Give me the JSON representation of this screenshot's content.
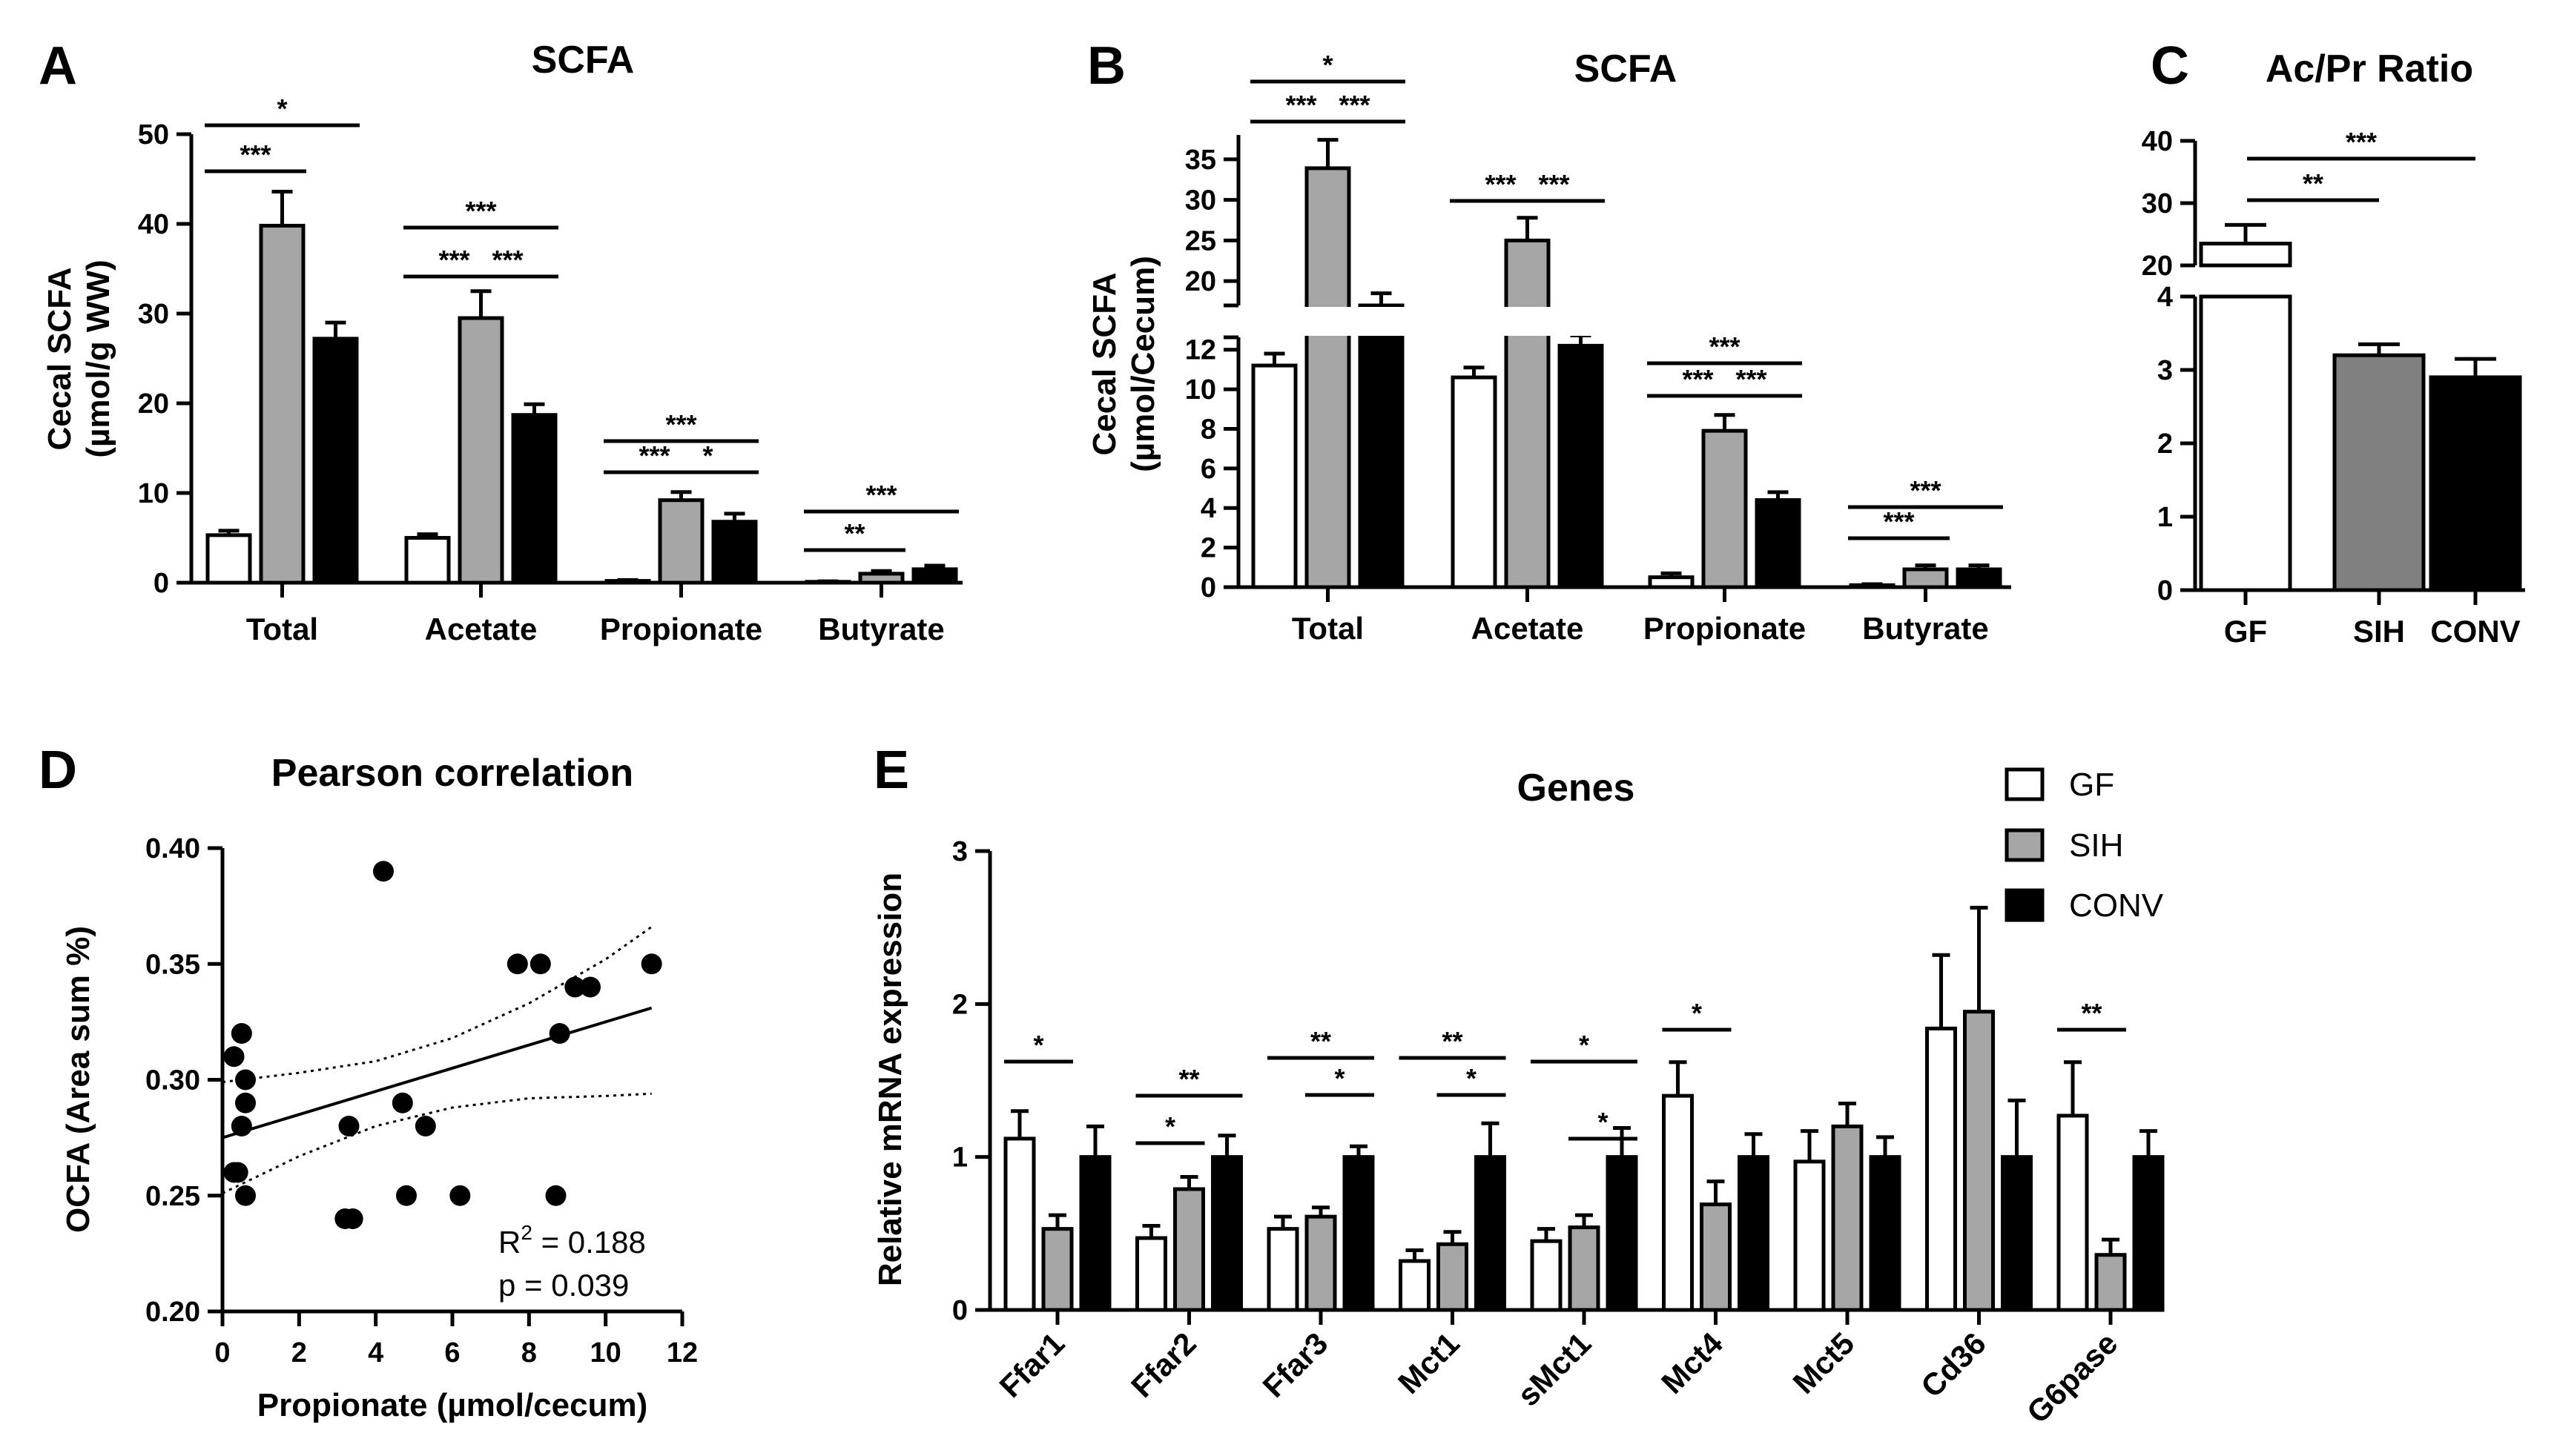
{
  "colors": {
    "GF": "#ffffff",
    "SIH": "#a6a6a6",
    "CONV": "#000000"
  },
  "legend": {
    "items": [
      "GF",
      "SIH",
      "CONV"
    ]
  },
  "chart_data": [
    {
      "panel": "A",
      "type": "bar",
      "title": "SCFA",
      "ylabel": [
        "Cecal SCFA",
        "(µmol/g WW)"
      ],
      "ylim": [
        0,
        50
      ],
      "yticks": [
        "0",
        "10",
        "20",
        "30",
        "40",
        "50"
      ],
      "categories": [
        "Total",
        "Acetate",
        "Propionate",
        "Butyrate"
      ],
      "series": [
        {
          "name": "GF",
          "values": [
            5.3,
            5.0,
            0.2,
            0.1
          ],
          "errors": [
            0.5,
            0.4,
            0.1,
            0.05
          ]
        },
        {
          "name": "SIH",
          "values": [
            39.8,
            29.5,
            9.2,
            1.0
          ],
          "errors": [
            3.8,
            3.0,
            0.9,
            0.3
          ]
        },
        {
          "name": "CONV",
          "values": [
            27.2,
            18.7,
            6.8,
            1.5
          ],
          "errors": [
            1.8,
            1.2,
            0.9,
            0.4
          ]
        }
      ],
      "significance": [
        {
          "cat": 0,
          "from": 0,
          "to": 1,
          "label": "***"
        },
        {
          "cat": 0,
          "from": 0,
          "to": 2,
          "label": "*"
        },
        {
          "cat": 1,
          "from": 0,
          "to": 1,
          "label": "***"
        },
        {
          "cat": 1,
          "from": 1,
          "to": 2,
          "label": "***"
        },
        {
          "cat": 1,
          "from": 0,
          "to": 2,
          "label": "***"
        },
        {
          "cat": 2,
          "from": 0,
          "to": 1,
          "label": "***"
        },
        {
          "cat": 2,
          "from": 1,
          "to": 2,
          "label": "*"
        },
        {
          "cat": 2,
          "from": 0,
          "to": 2,
          "label": "***"
        },
        {
          "cat": 3,
          "from": 0,
          "to": 1,
          "label": "**"
        },
        {
          "cat": 3,
          "from": 0,
          "to": 2,
          "label": "***"
        }
      ]
    },
    {
      "panel": "B",
      "type": "bar",
      "title": "SCFA",
      "ylabel": [
        "Cecal SCFA",
        "(µmol/Cecum)"
      ],
      "yticks_lower": [
        "0",
        "2",
        "4",
        "6",
        "8",
        "10",
        "12"
      ],
      "yticks_upper": [
        "20",
        "25",
        "30",
        "35"
      ],
      "categories": [
        "Total",
        "Acetate",
        "Propionate",
        "Butyrate"
      ],
      "series": [
        {
          "name": "GF",
          "values": [
            11.2,
            10.6,
            0.5,
            0.1
          ],
          "errors": [
            0.6,
            0.5,
            0.2,
            0.05
          ]
        },
        {
          "name": "SIH",
          "values": [
            33.9,
            25.0,
            7.9,
            0.9
          ],
          "errors": [
            3.5,
            2.8,
            0.8,
            0.2
          ]
        },
        {
          "name": "CONV",
          "values": [
            17.0,
            12.2,
            4.4,
            0.9
          ],
          "errors": [
            1.5,
            1.1,
            0.4,
            0.2
          ]
        }
      ],
      "significance": [
        {
          "cat": 0,
          "from": 0,
          "to": 1,
          "label": "***"
        },
        {
          "cat": 0,
          "from": 1,
          "to": 2,
          "label": "***"
        },
        {
          "cat": 0,
          "from": 0,
          "to": 2,
          "label": "*"
        },
        {
          "cat": 1,
          "from": 0,
          "to": 1,
          "label": "***"
        },
        {
          "cat": 1,
          "from": 1,
          "to": 2,
          "label": "***"
        },
        {
          "cat": 2,
          "from": 0,
          "to": 1,
          "label": "***"
        },
        {
          "cat": 2,
          "from": 1,
          "to": 2,
          "label": "***"
        },
        {
          "cat": 2,
          "from": 0,
          "to": 2,
          "label": "***"
        },
        {
          "cat": 3,
          "from": 0,
          "to": 1,
          "label": "***"
        },
        {
          "cat": 3,
          "from": 0,
          "to": 2,
          "label": "***"
        }
      ]
    },
    {
      "panel": "C",
      "type": "bar",
      "title": "Ac/Pr Ratio",
      "yticks_lower": [
        "0",
        "1",
        "2",
        "3",
        "4"
      ],
      "yticks_upper": [
        "20",
        "30",
        "40"
      ],
      "categories": [
        "GF",
        "SIH",
        "CONV"
      ],
      "values": [
        23.5,
        3.2,
        2.9
      ],
      "errors": [
        3.0,
        0.15,
        0.25
      ],
      "significance": [
        {
          "from": 0,
          "to": 1,
          "label": "**"
        },
        {
          "from": 0,
          "to": 2,
          "label": "***"
        }
      ]
    },
    {
      "panel": "D",
      "type": "scatter",
      "title": "Pearson correlation",
      "xlabel": "Propionate (µmol/cecum)",
      "ylabel": "OCFA (Area sum %)",
      "xlim": [
        0,
        12
      ],
      "ylim": [
        0.2,
        0.4
      ],
      "xticks": [
        "0",
        "2",
        "4",
        "6",
        "8",
        "10",
        "12"
      ],
      "yticks": [
        "0.20",
        "0.25",
        "0.30",
        "0.35",
        "0.40"
      ],
      "points": [
        [
          0.3,
          0.31
        ],
        [
          0.3,
          0.26
        ],
        [
          0.4,
          0.26
        ],
        [
          0.5,
          0.32
        ],
        [
          0.5,
          0.28
        ],
        [
          0.6,
          0.3
        ],
        [
          0.6,
          0.29
        ],
        [
          0.6,
          0.25
        ],
        [
          3.2,
          0.24
        ],
        [
          3.3,
          0.28
        ],
        [
          3.4,
          0.24
        ],
        [
          4.2,
          0.39
        ],
        [
          4.7,
          0.29
        ],
        [
          4.8,
          0.25
        ],
        [
          5.3,
          0.28
        ],
        [
          6.2,
          0.25
        ],
        [
          7.7,
          0.35
        ],
        [
          8.3,
          0.35
        ],
        [
          8.7,
          0.25
        ],
        [
          8.8,
          0.32
        ],
        [
          9.2,
          0.34
        ],
        [
          9.6,
          0.34
        ],
        [
          11.2,
          0.35
        ]
      ],
      "fit": {
        "x": [
          0,
          11.2
        ],
        "y": [
          0.275,
          0.331
        ]
      },
      "ci_lower": {
        "x": [
          0,
          2,
          4,
          6,
          8,
          10,
          11.2
        ],
        "y": [
          0.251,
          0.267,
          0.28,
          0.288,
          0.292,
          0.293,
          0.294
        ]
      },
      "ci_upper": {
        "x": [
          0,
          2,
          4,
          6,
          8,
          10,
          11.2
        ],
        "y": [
          0.299,
          0.303,
          0.308,
          0.318,
          0.333,
          0.352,
          0.366
        ]
      },
      "stats": {
        "r2_label": "R",
        "r2_sup": "2",
        "r2_value": " = 0.188",
        "p": "p = 0.039"
      }
    },
    {
      "panel": "E",
      "type": "bar",
      "title": "Genes",
      "ylabel": "Relative mRNA expression",
      "ylim": [
        0,
        3
      ],
      "yticks": [
        "0",
        "1",
        "2",
        "3"
      ],
      "categories": [
        "Ffar1",
        "Ffar2",
        "Ffar3",
        "Mct1",
        "sMct1",
        "Mct4",
        "Mct5",
        "Cd36",
        "G6pase"
      ],
      "series": [
        {
          "name": "GF",
          "values": [
            1.12,
            0.47,
            0.53,
            0.32,
            0.45,
            1.4,
            0.97,
            1.84,
            1.27
          ],
          "errors": [
            0.18,
            0.08,
            0.08,
            0.07,
            0.08,
            0.22,
            0.2,
            0.48,
            0.35
          ]
        },
        {
          "name": "SIH",
          "values": [
            0.53,
            0.79,
            0.61,
            0.43,
            0.54,
            0.69,
            1.2,
            1.95,
            0.36
          ],
          "errors": [
            0.09,
            0.08,
            0.06,
            0.08,
            0.08,
            0.15,
            0.15,
            0.68,
            0.1
          ]
        },
        {
          "name": "CONV",
          "values": [
            1.0,
            1.0,
            1.0,
            1.0,
            1.0,
            1.0,
            1.0,
            1.0,
            1.0
          ],
          "errors": [
            0.2,
            0.14,
            0.07,
            0.22,
            0.19,
            0.15,
            0.13,
            0.37,
            0.17
          ]
        }
      ],
      "significance": [
        {
          "cat": 0,
          "from": 0,
          "to": 1,
          "label": "*"
        },
        {
          "cat": 1,
          "from": 0,
          "to": 1,
          "label": "*"
        },
        {
          "cat": 1,
          "from": 0,
          "to": 2,
          "label": "**"
        },
        {
          "cat": 2,
          "from": 1,
          "to": 2,
          "label": "*"
        },
        {
          "cat": 2,
          "from": 0,
          "to": 2,
          "label": "**"
        },
        {
          "cat": 3,
          "from": 1,
          "to": 2,
          "label": "*"
        },
        {
          "cat": 3,
          "from": 0,
          "to": 2,
          "label": "**"
        },
        {
          "cat": 4,
          "from": 1,
          "to": 2,
          "label": "*"
        },
        {
          "cat": 4,
          "from": 0,
          "to": 2,
          "label": "*"
        },
        {
          "cat": 5,
          "from": 0,
          "to": 1,
          "label": "*"
        },
        {
          "cat": 8,
          "from": 0,
          "to": 1,
          "label": "**"
        }
      ]
    }
  ]
}
